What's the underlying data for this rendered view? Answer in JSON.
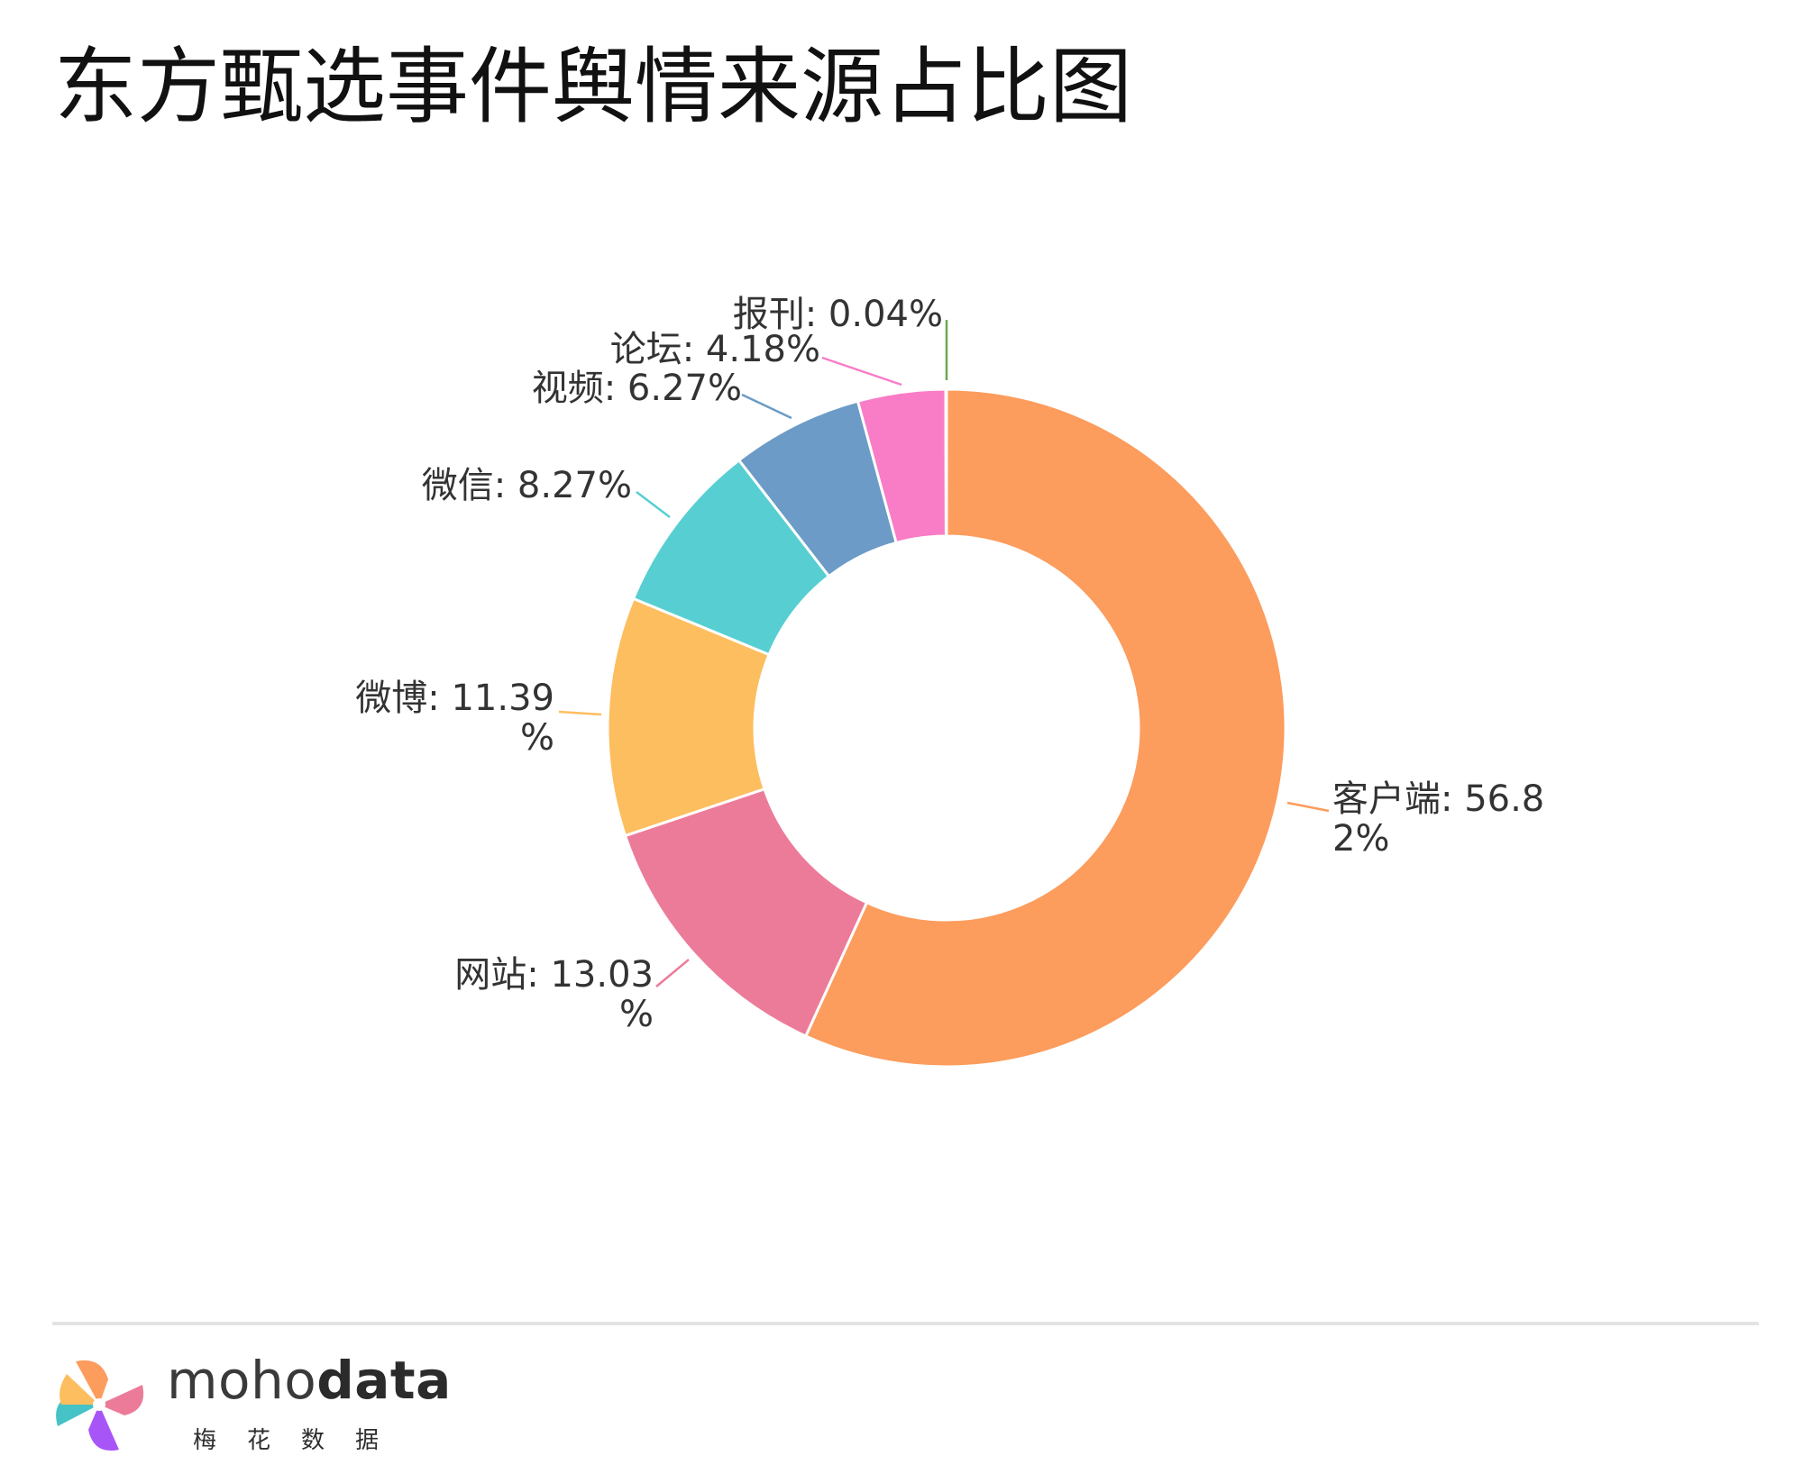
{
  "chart_data": {
    "type": "pie",
    "title": "东方甄选事件舆情来源占比图",
    "series": [
      {
        "name": "客户端",
        "value": 56.82,
        "label_lines": [
          "客户端: 56.8",
          "2%"
        ],
        "color": "#fc9c5d"
      },
      {
        "name": "网站",
        "value": 13.03,
        "label_lines": [
          "网站: 13.03",
          "%"
        ],
        "color": "#ec7b99"
      },
      {
        "name": "微博",
        "value": 11.39,
        "label_lines": [
          "微博: 11.39",
          "%"
        ],
        "color": "#fdbe5f"
      },
      {
        "name": "微信",
        "value": 8.27,
        "label_lines": [
          "微信: 8.27%"
        ],
        "color": "#57cfd2"
      },
      {
        "name": "视频",
        "value": 6.27,
        "label_lines": [
          "视频: 6.27%"
        ],
        "color": "#6b9bc6"
      },
      {
        "name": "论坛",
        "value": 4.18,
        "label_lines": [
          "论坛: 4.18%"
        ],
        "color": "#f97cc6"
      },
      {
        "name": "报刊",
        "value": 0.04,
        "label_lines": [
          "报刊: 0.04%"
        ],
        "color": "#6aa84f"
      }
    ],
    "donut": true,
    "start_angle": "12 o'clock, clockwise",
    "slice_border_color": "#ffffff"
  },
  "footer": {
    "brand_prefix": "moho",
    "brand_suffix": "data",
    "brand_sub": "梅花数据"
  }
}
